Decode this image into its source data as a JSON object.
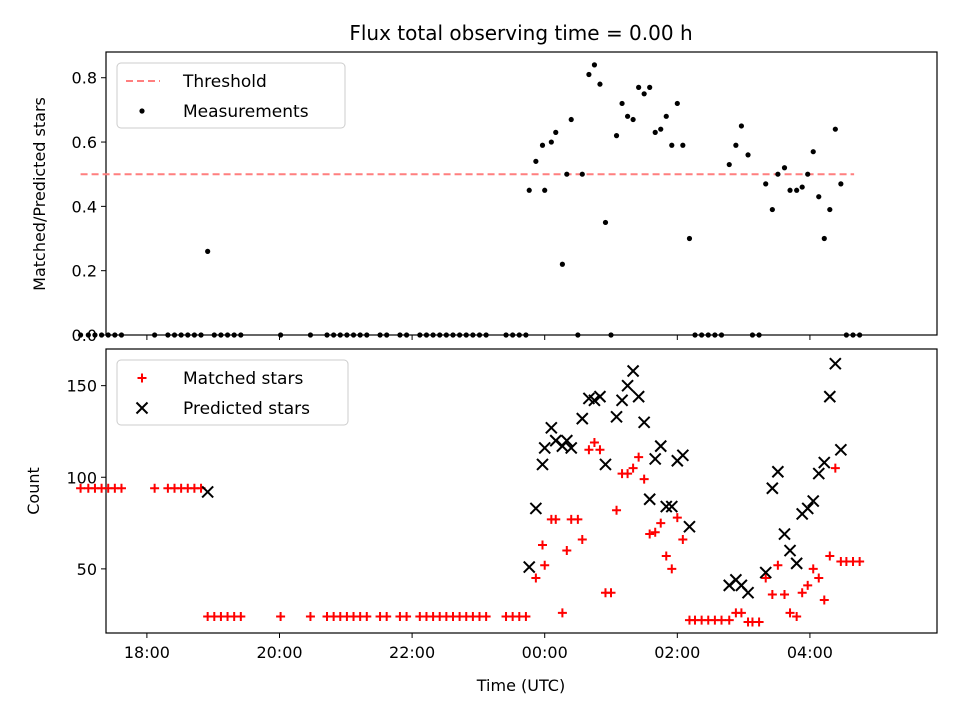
{
  "figure": {
    "title": "Flux total observing time = 0.00 h"
  },
  "chart_data": [
    {
      "type": "scatter",
      "title": "Flux total observing time = 0.00 h",
      "xlabel": "",
      "ylabel": "Matched/Predicted stars",
      "xlim": [
        "17:23",
        "05:55"
      ],
      "ylim": [
        0,
        0.88
      ],
      "yticks": [
        "0.0",
        "0.2",
        "0.4",
        "0.6",
        "0.8"
      ],
      "legend_position": "top-left",
      "grid": false,
      "series": [
        {
          "name": "Threshold",
          "style": "dashed-line",
          "color": "#ff7f7f",
          "points": [
            [
              "17:00",
              0.5
            ],
            [
              "04:40",
              0.5
            ]
          ]
        },
        {
          "name": "Measurements",
          "style": "dot",
          "color": "#000000",
          "points": [
            [
              "17:00",
              0.0
            ],
            [
              "17:07",
              0.0
            ],
            [
              "17:13",
              0.0
            ],
            [
              "17:19",
              0.0
            ],
            [
              "17:25",
              0.0
            ],
            [
              "17:31",
              0.0
            ],
            [
              "17:37",
              0.0
            ],
            [
              "18:07",
              0.0
            ],
            [
              "18:19",
              0.0
            ],
            [
              "18:25",
              0.0
            ],
            [
              "18:31",
              0.0
            ],
            [
              "18:37",
              0.0
            ],
            [
              "18:43",
              0.0
            ],
            [
              "18:49",
              0.0
            ],
            [
              "18:55",
              0.26
            ],
            [
              "19:01",
              0.0
            ],
            [
              "19:07",
              0.0
            ],
            [
              "19:13",
              0.0
            ],
            [
              "19:19",
              0.0
            ],
            [
              "19:25",
              0.0
            ],
            [
              "20:01",
              0.0
            ],
            [
              "20:28",
              0.0
            ],
            [
              "20:43",
              0.0
            ],
            [
              "20:49",
              0.0
            ],
            [
              "20:55",
              0.0
            ],
            [
              "21:01",
              0.0
            ],
            [
              "21:07",
              0.0
            ],
            [
              "21:13",
              0.0
            ],
            [
              "21:19",
              0.0
            ],
            [
              "21:31",
              0.0
            ],
            [
              "21:37",
              0.0
            ],
            [
              "21:49",
              0.0
            ],
            [
              "21:55",
              0.0
            ],
            [
              "22:07",
              0.0
            ],
            [
              "22:13",
              0.0
            ],
            [
              "22:19",
              0.0
            ],
            [
              "22:25",
              0.0
            ],
            [
              "22:31",
              0.0
            ],
            [
              "22:37",
              0.0
            ],
            [
              "22:43",
              0.0
            ],
            [
              "22:49",
              0.0
            ],
            [
              "22:55",
              0.0
            ],
            [
              "23:01",
              0.0
            ],
            [
              "23:07",
              0.0
            ],
            [
              "23:25",
              0.0
            ],
            [
              "23:31",
              0.0
            ],
            [
              "23:37",
              0.0
            ],
            [
              "23:43",
              0.0
            ],
            [
              "23:46",
              0.45
            ],
            [
              "23:52",
              0.54
            ],
            [
              "23:58",
              0.59
            ],
            [
              "00:00",
              0.45
            ],
            [
              "00:06",
              0.6
            ],
            [
              "00:10",
              0.63
            ],
            [
              "00:16",
              0.22
            ],
            [
              "00:20",
              0.5
            ],
            [
              "00:24",
              0.67
            ],
            [
              "00:30",
              0.0
            ],
            [
              "00:34",
              0.5
            ],
            [
              "00:40",
              0.81
            ],
            [
              "00:45",
              0.84
            ],
            [
              "00:50",
              0.78
            ],
            [
              "00:55",
              0.35
            ],
            [
              "01:00",
              0.0
            ],
            [
              "01:05",
              0.62
            ],
            [
              "01:10",
              0.72
            ],
            [
              "01:15",
              0.68
            ],
            [
              "01:20",
              0.67
            ],
            [
              "01:25",
              0.77
            ],
            [
              "01:30",
              0.75
            ],
            [
              "01:35",
              0.77
            ],
            [
              "01:40",
              0.63
            ],
            [
              "01:45",
              0.64
            ],
            [
              "01:50",
              0.68
            ],
            [
              "01:55",
              0.59
            ],
            [
              "02:00",
              0.72
            ],
            [
              "02:05",
              0.59
            ],
            [
              "02:11",
              0.3
            ],
            [
              "02:16",
              0.0
            ],
            [
              "02:22",
              0.0
            ],
            [
              "02:28",
              0.0
            ],
            [
              "02:34",
              0.0
            ],
            [
              "02:40",
              0.0
            ],
            [
              "02:47",
              0.53
            ],
            [
              "02:53",
              0.59
            ],
            [
              "02:58",
              0.65
            ],
            [
              "03:04",
              0.56
            ],
            [
              "03:08",
              0.0
            ],
            [
              "03:14",
              0.0
            ],
            [
              "03:20",
              0.47
            ],
            [
              "03:26",
              0.39
            ],
            [
              "03:31",
              0.5
            ],
            [
              "03:37",
              0.52
            ],
            [
              "03:42",
              0.45
            ],
            [
              "03:48",
              0.45
            ],
            [
              "03:53",
              0.46
            ],
            [
              "03:58",
              0.5
            ],
            [
              "04:03",
              0.57
            ],
            [
              "04:08",
              0.43
            ],
            [
              "04:13",
              0.3
            ],
            [
              "04:18",
              0.39
            ],
            [
              "04:23",
              0.64
            ],
            [
              "04:28",
              0.47
            ],
            [
              "04:33",
              0.0
            ],
            [
              "04:39",
              0.0
            ],
            [
              "04:45",
              0.0
            ]
          ]
        }
      ]
    },
    {
      "type": "scatter",
      "title": "",
      "xlabel": "Time (UTC)",
      "ylabel": "Count",
      "xlim": [
        "17:23",
        "05:55"
      ],
      "ylim": [
        15,
        170
      ],
      "yticks": [
        "50",
        "100",
        "150"
      ],
      "xticks": [
        "18:00",
        "20:00",
        "22:00",
        "00:00",
        "02:00",
        "04:00"
      ],
      "legend_position": "top-left",
      "grid": false,
      "series": [
        {
          "name": "Matched stars",
          "marker": "plus",
          "color": "#ff0000",
          "points": [
            [
              "17:00",
              94
            ],
            [
              "17:07",
              94
            ],
            [
              "17:13",
              94
            ],
            [
              "17:19",
              94
            ],
            [
              "17:25",
              94
            ],
            [
              "17:31",
              94
            ],
            [
              "17:37",
              94
            ],
            [
              "18:07",
              94
            ],
            [
              "18:19",
              94
            ],
            [
              "18:25",
              94
            ],
            [
              "18:31",
              94
            ],
            [
              "18:37",
              94
            ],
            [
              "18:43",
              94
            ],
            [
              "18:49",
              94
            ],
            [
              "18:55",
              24
            ],
            [
              "19:01",
              24
            ],
            [
              "19:07",
              24
            ],
            [
              "19:13",
              24
            ],
            [
              "19:19",
              24
            ],
            [
              "19:25",
              24
            ],
            [
              "20:01",
              24
            ],
            [
              "20:28",
              24
            ],
            [
              "20:43",
              24
            ],
            [
              "20:49",
              24
            ],
            [
              "20:55",
              24
            ],
            [
              "21:01",
              24
            ],
            [
              "21:07",
              24
            ],
            [
              "21:13",
              24
            ],
            [
              "21:19",
              24
            ],
            [
              "21:31",
              24
            ],
            [
              "21:37",
              24
            ],
            [
              "21:49",
              24
            ],
            [
              "21:55",
              24
            ],
            [
              "22:07",
              24
            ],
            [
              "22:13",
              24
            ],
            [
              "22:19",
              24
            ],
            [
              "22:25",
              24
            ],
            [
              "22:31",
              24
            ],
            [
              "22:37",
              24
            ],
            [
              "22:43",
              24
            ],
            [
              "22:49",
              24
            ],
            [
              "22:55",
              24
            ],
            [
              "23:01",
              24
            ],
            [
              "23:07",
              24
            ],
            [
              "23:25",
              24
            ],
            [
              "23:31",
              24
            ],
            [
              "23:37",
              24
            ],
            [
              "23:43",
              24
            ],
            [
              "23:52",
              45
            ],
            [
              "23:58",
              63
            ],
            [
              "00:00",
              52
            ],
            [
              "00:06",
              77
            ],
            [
              "00:10",
              77
            ],
            [
              "00:16",
              26
            ],
            [
              "00:20",
              60
            ],
            [
              "00:24",
              77
            ],
            [
              "00:30",
              77
            ],
            [
              "00:34",
              66
            ],
            [
              "00:40",
              115
            ],
            [
              "00:45",
              119
            ],
            [
              "00:50",
              115
            ],
            [
              "00:55",
              37
            ],
            [
              "01:00",
              37
            ],
            [
              "01:05",
              82
            ],
            [
              "01:10",
              102
            ],
            [
              "01:15",
              102
            ],
            [
              "01:20",
              105
            ],
            [
              "01:25",
              111
            ],
            [
              "01:30",
              99
            ],
            [
              "01:35",
              69
            ],
            [
              "01:40",
              70
            ],
            [
              "01:45",
              75
            ],
            [
              "01:50",
              57
            ],
            [
              "01:55",
              50
            ],
            [
              "02:00",
              78
            ],
            [
              "02:05",
              66
            ],
            [
              "02:11",
              22
            ],
            [
              "02:16",
              22
            ],
            [
              "02:22",
              22
            ],
            [
              "02:28",
              22
            ],
            [
              "02:34",
              22
            ],
            [
              "02:40",
              22
            ],
            [
              "02:47",
              22
            ],
            [
              "02:53",
              26
            ],
            [
              "02:58",
              26
            ],
            [
              "03:04",
              21
            ],
            [
              "03:08",
              21
            ],
            [
              "03:14",
              21
            ],
            [
              "03:20",
              45
            ],
            [
              "03:26",
              36
            ],
            [
              "03:31",
              52
            ],
            [
              "03:37",
              36
            ],
            [
              "03:42",
              26
            ],
            [
              "03:48",
              24
            ],
            [
              "03:53",
              37
            ],
            [
              "03:58",
              41
            ],
            [
              "04:03",
              50
            ],
            [
              "04:08",
              45
            ],
            [
              "04:13",
              33
            ],
            [
              "04:18",
              57
            ],
            [
              "04:23",
              105
            ],
            [
              "04:28",
              54
            ],
            [
              "04:33",
              54
            ],
            [
              "04:39",
              54
            ],
            [
              "04:45",
              54
            ]
          ]
        },
        {
          "name": "Predicted stars",
          "marker": "x",
          "color": "#000000",
          "points": [
            [
              "18:55",
              92
            ],
            [
              "23:46",
              51
            ],
            [
              "23:52",
              83
            ],
            [
              "23:58",
              107
            ],
            [
              "00:00",
              116
            ],
            [
              "00:06",
              127
            ],
            [
              "00:10",
              120
            ],
            [
              "00:16",
              117
            ],
            [
              "00:20",
              120
            ],
            [
              "00:24",
              116
            ],
            [
              "00:34",
              132
            ],
            [
              "00:40",
              143
            ],
            [
              "00:45",
              142
            ],
            [
              "00:50",
              144
            ],
            [
              "00:55",
              107
            ],
            [
              "01:05",
              133
            ],
            [
              "01:10",
              142
            ],
            [
              "01:15",
              150
            ],
            [
              "01:20",
              158
            ],
            [
              "01:25",
              144
            ],
            [
              "01:30",
              130
            ],
            [
              "01:35",
              88
            ],
            [
              "01:40",
              110
            ],
            [
              "01:45",
              117
            ],
            [
              "01:50",
              84
            ],
            [
              "01:55",
              84
            ],
            [
              "02:00",
              109
            ],
            [
              "02:05",
              112
            ],
            [
              "02:11",
              73
            ],
            [
              "02:47",
              41
            ],
            [
              "02:53",
              44
            ],
            [
              "02:58",
              41
            ],
            [
              "03:04",
              37
            ],
            [
              "03:20",
              48
            ],
            [
              "03:26",
              94
            ],
            [
              "03:31",
              103
            ],
            [
              "03:37",
              69
            ],
            [
              "03:42",
              60
            ],
            [
              "03:48",
              53
            ],
            [
              "03:53",
              80
            ],
            [
              "03:58",
              83
            ],
            [
              "04:03",
              87
            ],
            [
              "04:08",
              102
            ],
            [
              "04:13",
              108
            ],
            [
              "04:18",
              144
            ],
            [
              "04:23",
              162
            ],
            [
              "04:28",
              115
            ]
          ]
        }
      ]
    }
  ]
}
